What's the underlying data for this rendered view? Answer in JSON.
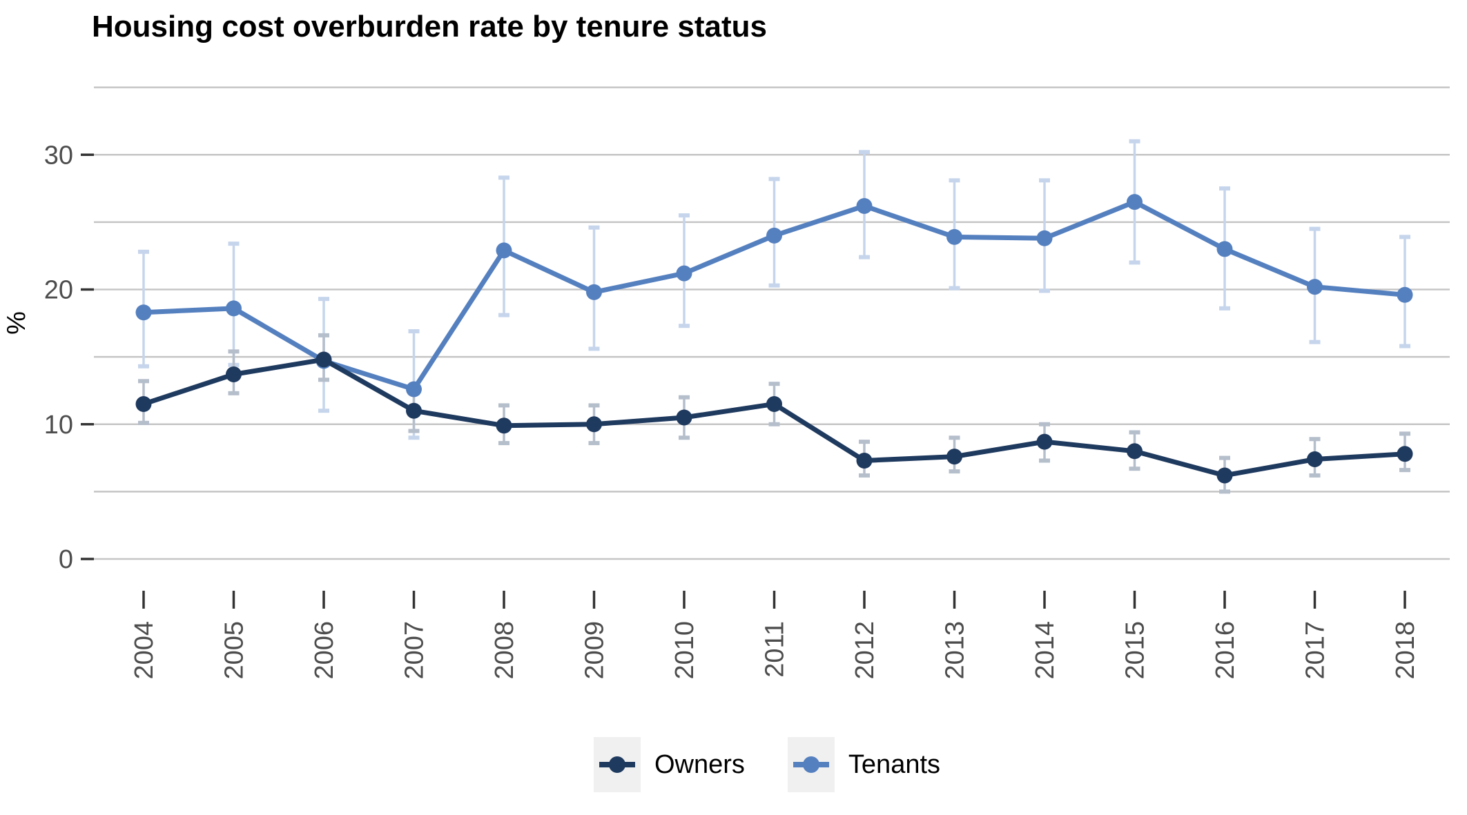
{
  "title": "Housing cost overburden rate by tenure status",
  "colors": {
    "owners": "#1F3A5F",
    "tenants": "#5580BF",
    "owners_error": "#B5BECB",
    "tenants_error": "#C6D5EC",
    "grid": "#C5C5C5",
    "tick_mark": "#333333",
    "tick_label": "#4D4D4D",
    "legend_key_bg": "#F0F0F0"
  },
  "y_axis": {
    "title": "%",
    "tick_labels": [
      "0",
      "10",
      "20",
      "30"
    ]
  },
  "legend": {
    "position": "bottom",
    "items": [
      "Owners",
      "Tenants"
    ]
  },
  "chart_data": {
    "type": "line",
    "title": "Housing cost overburden rate by tenure status",
    "xlabel": "",
    "ylabel": "%",
    "ylim": [
      0,
      35
    ],
    "grid": "horizontal gridlines every 5, labels every 10",
    "gridlines": [
      0,
      5,
      10,
      15,
      20,
      25,
      30,
      35
    ],
    "y_ticks": [
      0,
      10,
      20,
      30
    ],
    "legend_position": "bottom",
    "categories": [
      "2004",
      "2005",
      "2006",
      "2007",
      "2008",
      "2009",
      "2010",
      "2011",
      "2012",
      "2013",
      "2014",
      "2015",
      "2016",
      "2017",
      "2018"
    ],
    "series": [
      {
        "name": "Owners",
        "color": "#1F3A5F",
        "error_color": "#B5BECB",
        "values": [
          11.5,
          13.7,
          14.8,
          11.0,
          9.9,
          10.0,
          10.5,
          11.5,
          7.3,
          7.6,
          8.7,
          8.0,
          6.2,
          7.4,
          7.8
        ],
        "error_low": [
          10.1,
          12.3,
          13.3,
          9.5,
          8.6,
          8.6,
          9.0,
          10.0,
          6.2,
          6.5,
          7.3,
          6.7,
          5.0,
          6.2,
          6.6
        ],
        "error_high": [
          13.2,
          15.4,
          16.6,
          12.3,
          11.4,
          11.4,
          12.0,
          13.0,
          8.7,
          9.0,
          10.0,
          9.4,
          7.5,
          8.9,
          9.3
        ]
      },
      {
        "name": "Tenants",
        "color": "#5580BF",
        "error_color": "#C6D5EC",
        "values": [
          18.3,
          18.6,
          14.7,
          12.6,
          22.9,
          19.8,
          21.2,
          24.0,
          26.2,
          23.9,
          23.8,
          26.5,
          23.0,
          20.2,
          19.6
        ],
        "error_low": [
          14.3,
          14.4,
          11.0,
          9.0,
          18.1,
          15.6,
          17.3,
          20.3,
          22.4,
          20.1,
          19.9,
          22.0,
          18.6,
          16.1,
          15.8
        ],
        "error_high": [
          22.8,
          23.4,
          19.3,
          16.9,
          28.3,
          24.6,
          25.5,
          28.2,
          30.2,
          28.1,
          28.1,
          31.0,
          27.5,
          24.5,
          23.9
        ]
      }
    ]
  }
}
